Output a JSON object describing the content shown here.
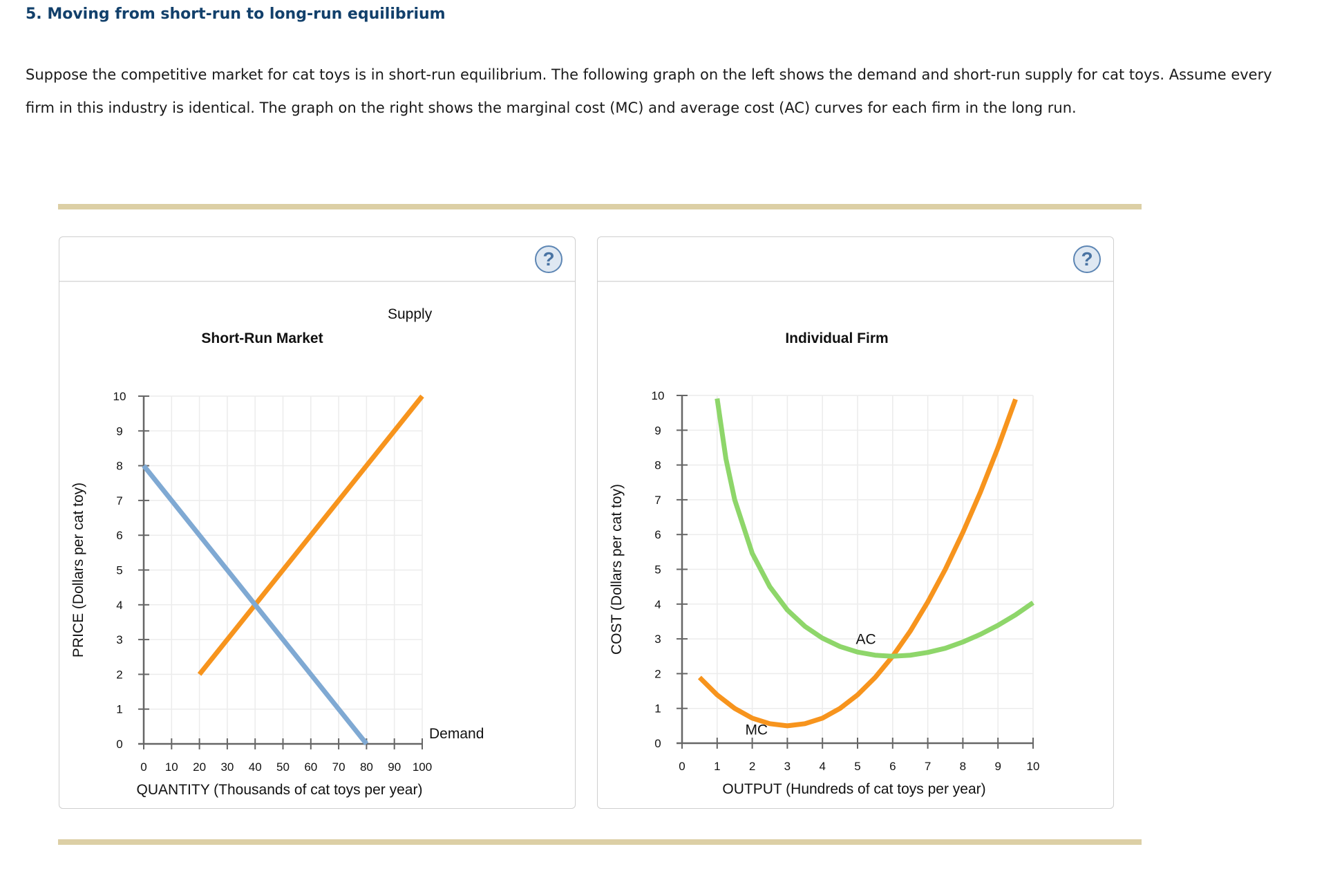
{
  "question": {
    "title": "5. Moving from short-run to long-run equilibrium",
    "text": "Suppose the competitive market for cat toys is in short-run equilibrium. The following graph on the left shows the demand and short-run supply for cat toys. Assume every firm in this industry is identical. The graph on the right shows the marginal cost (MC) and average cost (AC) curves for each firm in the long run."
  },
  "help_label": "?",
  "colors": {
    "supply": "#f7941d",
    "demand": "#7fa9d3",
    "mc": "#f7941d",
    "ac": "#8ed66a",
    "heading": "#12406b",
    "rule": "#dccfa5"
  },
  "chart_data": [
    {
      "type": "line",
      "title": "Short-Run Market",
      "xlabel": "QUANTITY (Thousands of cat toys per year)",
      "ylabel": "PRICE (Dollars per cat toy)",
      "xlim": [
        0,
        100
      ],
      "ylim": [
        0,
        10
      ],
      "xticks": [
        "0",
        "10",
        "20",
        "30",
        "40",
        "50",
        "60",
        "70",
        "80",
        "90",
        "100"
      ],
      "yticks": [
        "0",
        "1",
        "2",
        "3",
        "4",
        "5",
        "6",
        "7",
        "8",
        "9",
        "10"
      ],
      "grid": true,
      "series": [
        {
          "name": "Supply",
          "color": "#f7941d",
          "x": [
            20,
            100
          ],
          "y": [
            2,
            10
          ]
        },
        {
          "name": "Demand",
          "color": "#7fa9d3",
          "x": [
            0,
            80
          ],
          "y": [
            8,
            0
          ]
        }
      ]
    },
    {
      "type": "line",
      "title": "Individual Firm",
      "xlabel": "OUTPUT (Hundreds of cat toys per year)",
      "ylabel": "COST (Dollars per cat toy)",
      "xlim": [
        0,
        10
      ],
      "ylim": [
        0,
        10
      ],
      "xticks": [
        "0",
        "1",
        "2",
        "3",
        "4",
        "5",
        "6",
        "7",
        "8",
        "9",
        "10"
      ],
      "yticks": [
        "0",
        "1",
        "2",
        "3",
        "4",
        "5",
        "6",
        "7",
        "8",
        "9",
        "10"
      ],
      "grid": true,
      "series": [
        {
          "name": "MC",
          "color": "#f7941d",
          "x": [
            0.5,
            1,
            1.5,
            2,
            2.5,
            3,
            3.5,
            4,
            4.5,
            5,
            5.5,
            6,
            6.5,
            7,
            7.5,
            8,
            8.5,
            9,
            9.5
          ],
          "y": [
            1.89,
            1.39,
            1.0,
            0.72,
            0.56,
            0.5,
            0.56,
            0.72,
            1.0,
            1.39,
            1.89,
            2.5,
            3.22,
            4.06,
            5.0,
            6.06,
            7.22,
            8.5,
            9.89
          ]
        },
        {
          "name": "AC",
          "color": "#8ed66a",
          "x": [
            1,
            1.25,
            1.5,
            2,
            2.5,
            3,
            3.5,
            4,
            4.5,
            5,
            5.5,
            6,
            6.5,
            7,
            7.5,
            8,
            8.5,
            9,
            9.5,
            10
          ],
          "y": [
            9.91,
            8.18,
            7.0,
            5.46,
            4.5,
            3.83,
            3.36,
            3.02,
            2.78,
            2.62,
            2.53,
            2.5,
            2.53,
            2.61,
            2.73,
            2.91,
            3.13,
            3.39,
            3.69,
            4.04
          ]
        }
      ]
    }
  ]
}
